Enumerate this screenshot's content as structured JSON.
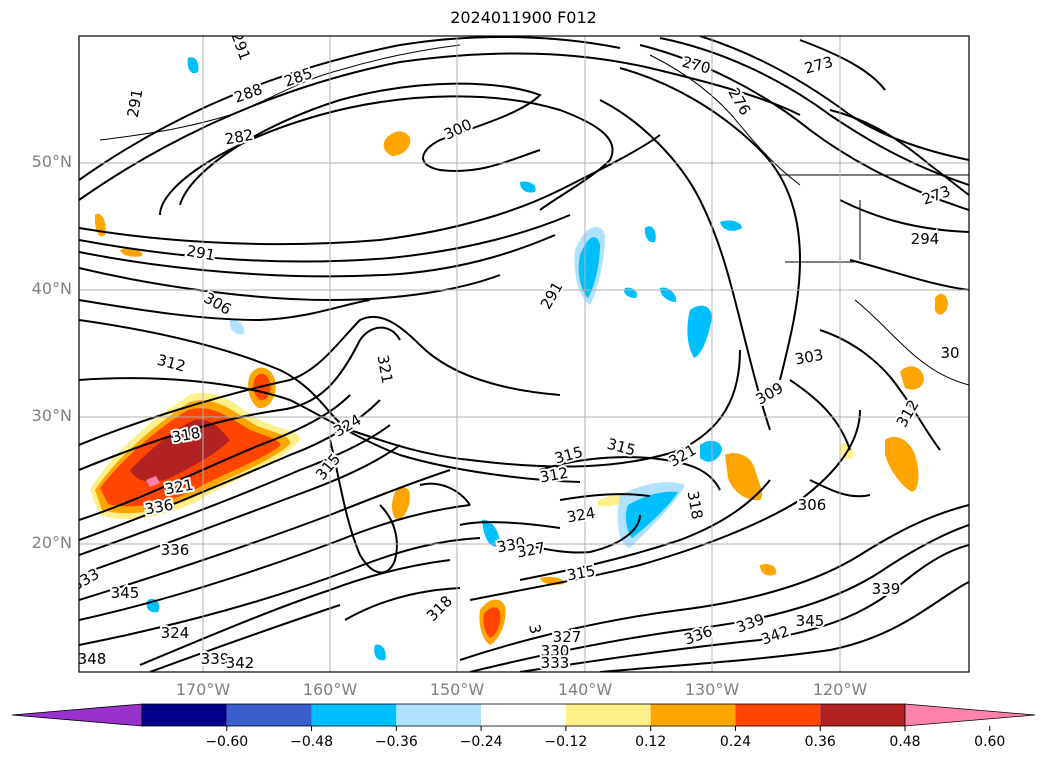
{
  "title": "2024011900 F012",
  "lat_labels": [
    "50°N",
    "40°N",
    "30°N",
    "20°N"
  ],
  "lon_labels": [
    "170°W",
    "160°W",
    "150°W",
    "140°W",
    "130°W",
    "120°W"
  ],
  "colorbar": {
    "colors": [
      "#9932cc",
      "#00008b",
      "#3a5fcd",
      "#00bfff",
      "#b0e2ff",
      "#ffffff",
      "#fff08a",
      "#ffa500",
      "#ff4500",
      "#b22222",
      "#ff82ab"
    ],
    "ticks": [
      "−0.60",
      "−0.48",
      "−0.36",
      "−0.24",
      "−0.12",
      "0.12",
      "0.24",
      "0.36",
      "0.48",
      "0.60"
    ]
  },
  "contour_labels": [
    "291",
    "288",
    "285",
    "282",
    "291",
    "300",
    "270",
    "273",
    "276",
    "273",
    "294",
    "291",
    "291",
    "306",
    "312",
    "318",
    "321",
    "336",
    "321",
    "324",
    "315",
    "309",
    "303",
    "30",
    "315",
    "315",
    "312",
    "321",
    "324",
    "318",
    "306",
    "312",
    "330",
    "327",
    "336",
    "333",
    "345",
    "348",
    "324",
    "339",
    "342",
    "315",
    "318",
    "327",
    "330",
    "333",
    "336",
    "339",
    "342",
    "345",
    "339",
    "3"
  ]
}
